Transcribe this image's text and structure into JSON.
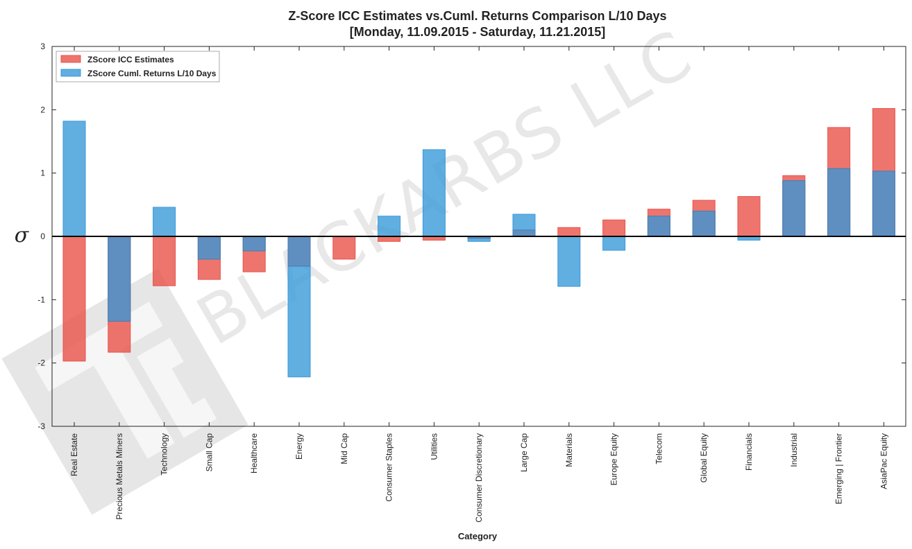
{
  "chart_data": {
    "type": "bar",
    "title": "Z-Score ICC Estimates vs.Cuml. Returns Comparison L/10 Days",
    "subtitle": "[Monday, 11.09.2015 - Saturday, 11.21.2015]",
    "xlabel": "Category",
    "ylabel": "σ",
    "ylim": [
      -3,
      3
    ],
    "yticks": [
      "3",
      "2",
      "1",
      "0",
      "-1",
      "-2",
      "-3"
    ],
    "categories": [
      "Real Estate",
      "Precious Metals Miners",
      "Technology",
      "Small Cap",
      "Healthcare",
      "Energy",
      "Mid Cap",
      "Consumer Staples",
      "Utilities",
      "Consumer Discretionary",
      "Large Cap",
      "Materials",
      "Europe Equity",
      "Telecom",
      "Global Equity",
      "Financials",
      "Industrial",
      "Emerging | Frontier",
      "AsiaPac Equity"
    ],
    "series": [
      {
        "name": "ZScore ICC Estimates",
        "color": "#e8534a",
        "values": [
          -1.97,
          -1.83,
          -0.78,
          -0.68,
          -0.56,
          -0.47,
          -0.36,
          -0.08,
          -0.06,
          -0.03,
          0.1,
          0.14,
          0.26,
          0.43,
          0.57,
          0.63,
          0.96,
          1.72,
          2.02
        ]
      },
      {
        "name": "ZScore Cuml. Returns L/10 Days",
        "color": "#3a9ad9",
        "values": [
          1.82,
          -1.34,
          0.46,
          -0.36,
          -0.23,
          -2.22,
          0.0,
          0.32,
          1.37,
          -0.08,
          0.35,
          -0.79,
          -0.22,
          0.32,
          0.4,
          -0.06,
          0.88,
          1.07,
          1.03
        ]
      }
    ],
    "overlap_color": "#5f8fc0",
    "grid": false,
    "legend_position": "top-left"
  },
  "watermark": {
    "text": "BLACKARBS LLC"
  }
}
